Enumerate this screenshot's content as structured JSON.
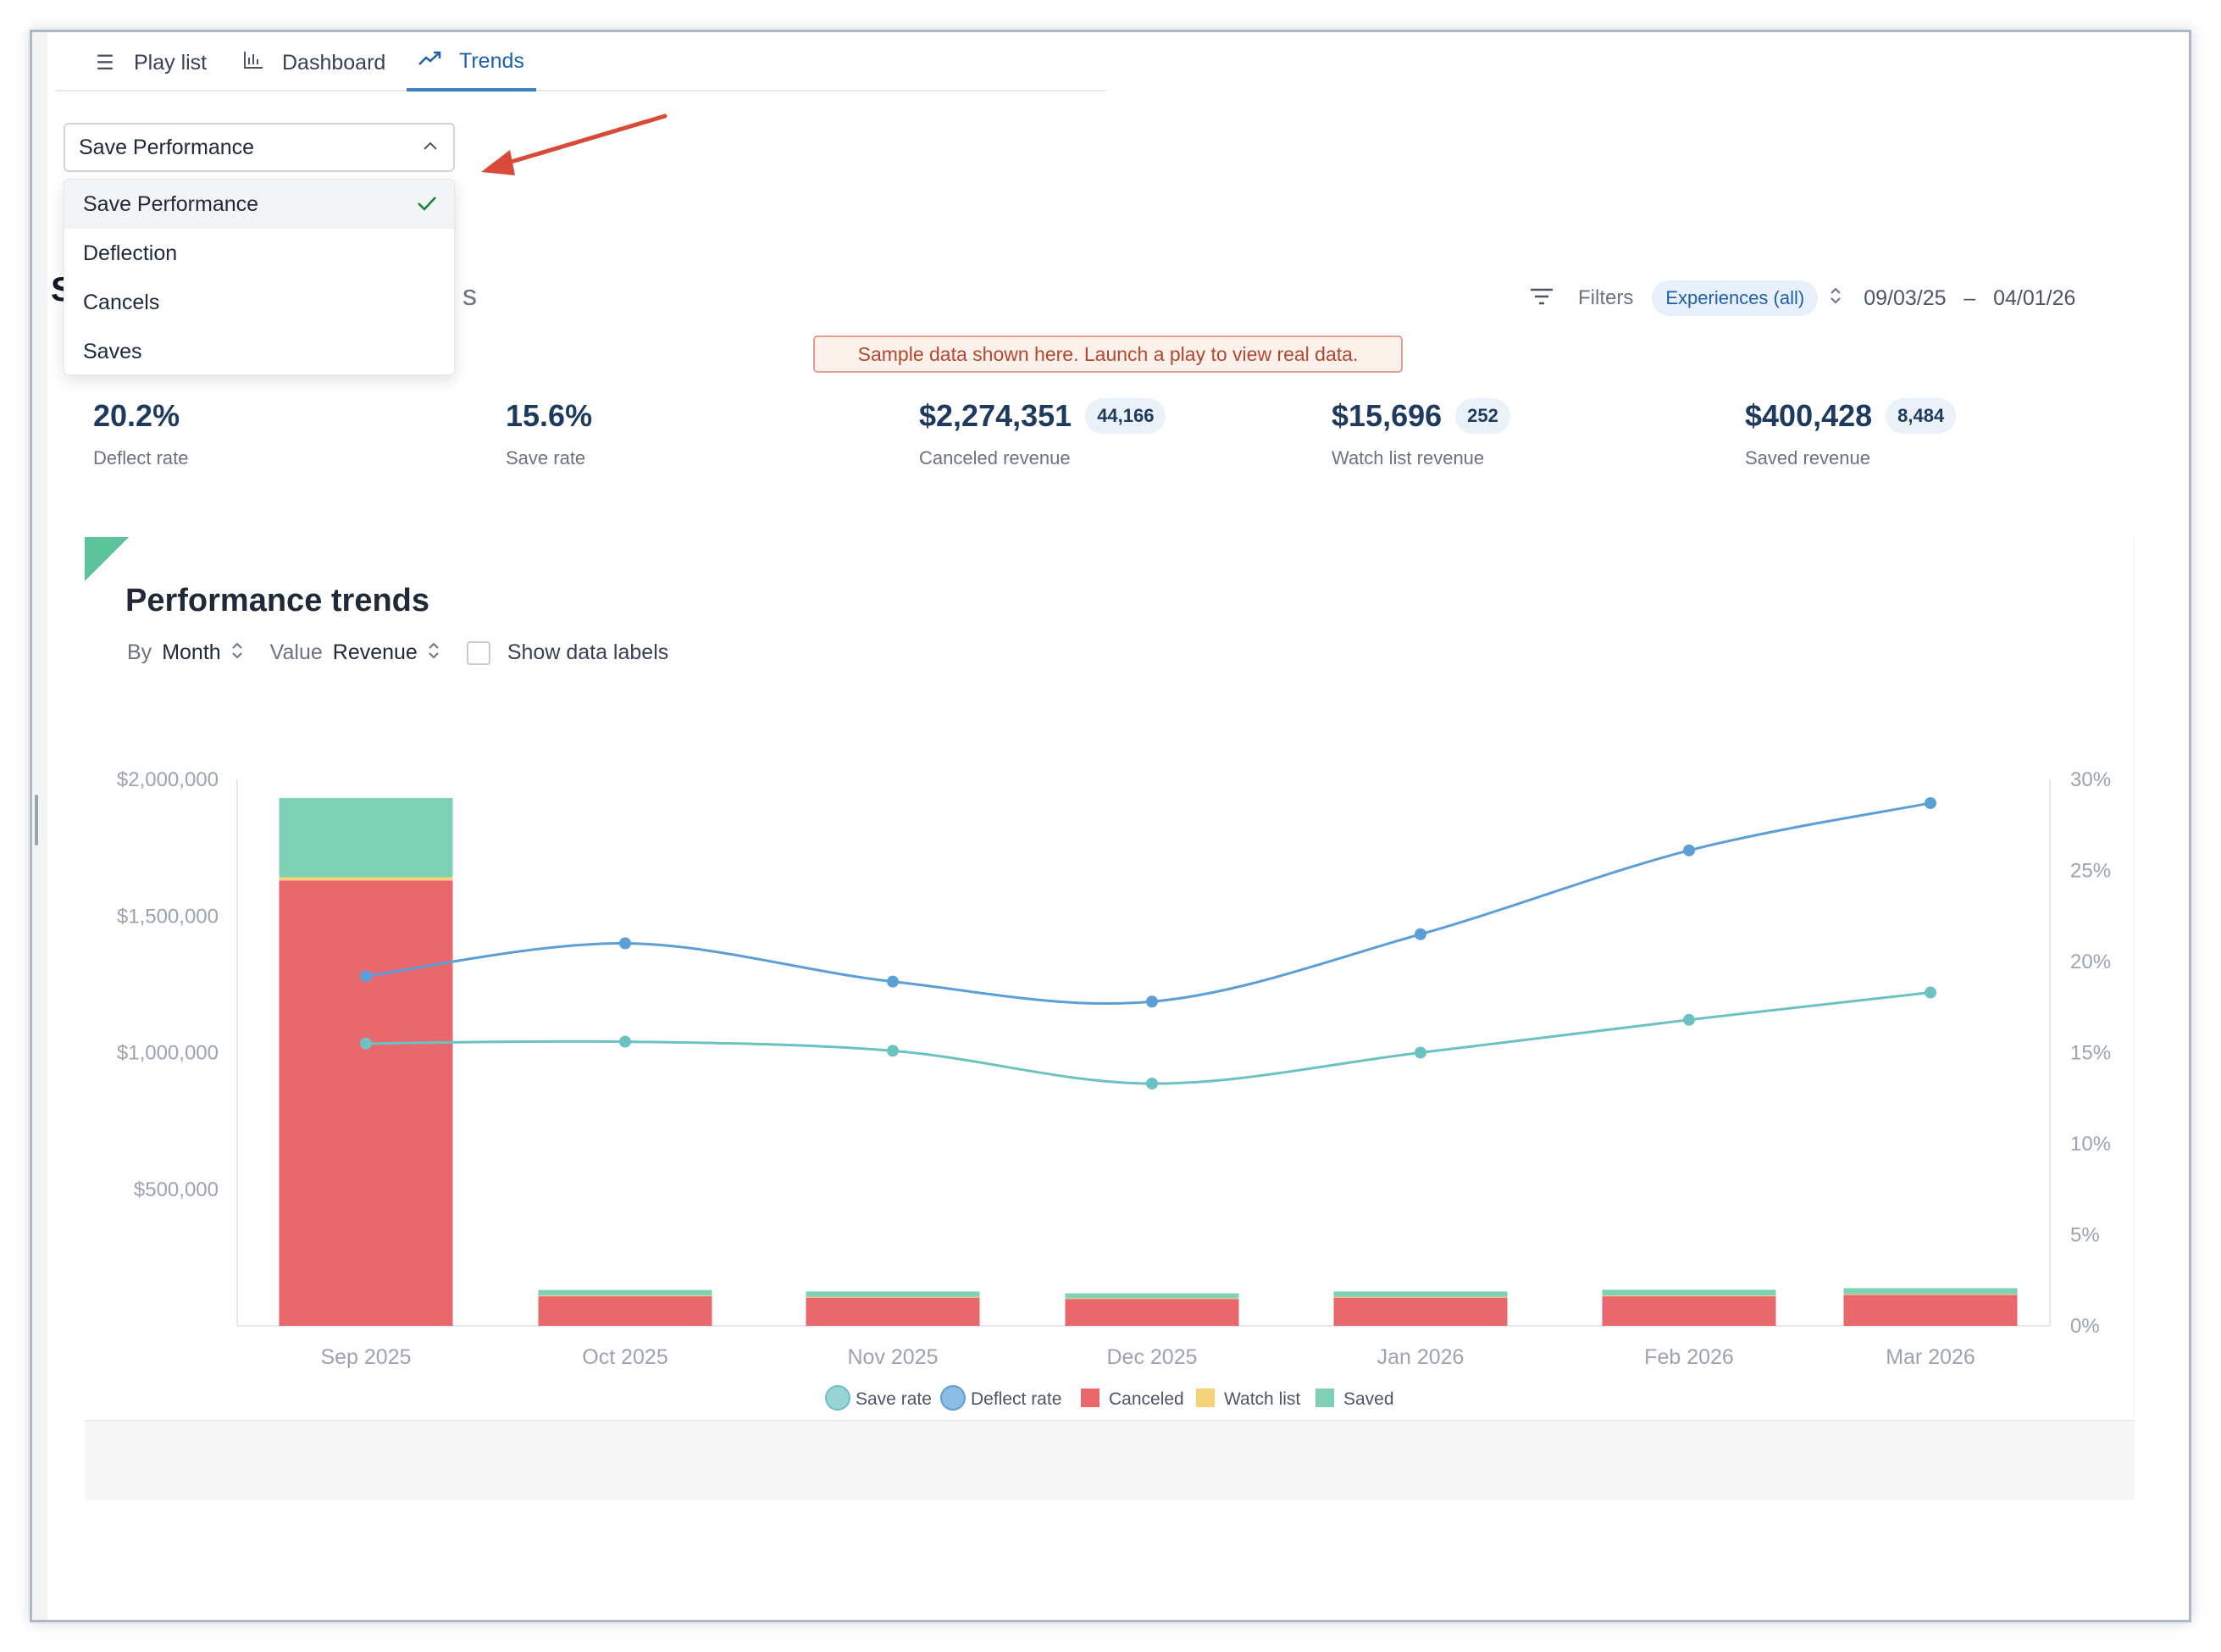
{
  "tabs": [
    {
      "label": "Play list",
      "icon": "list-icon"
    },
    {
      "label": "Dashboard",
      "icon": "bar-chart-icon"
    },
    {
      "label": "Trends",
      "icon": "trend-icon"
    }
  ],
  "select": {
    "value": "Save Performance",
    "options": [
      "Save Performance",
      "Deflection",
      "Cancels",
      "Saves"
    ]
  },
  "header_partial": {
    "left": "S",
    "right": "s"
  },
  "filters": {
    "label": "Filters",
    "pill": "Experiences (all)",
    "date_from": "09/03/25",
    "sep": "–",
    "date_to": "04/01/26"
  },
  "banner": "Sample data shown here. Launch a play to view real data.",
  "metrics": [
    {
      "value": "20.2%",
      "badge": "",
      "label": "Deflect rate"
    },
    {
      "value": "15.6%",
      "badge": "",
      "label": "Save rate"
    },
    {
      "value": "$2,274,351",
      "badge": "44,166",
      "label": "Canceled revenue"
    },
    {
      "value": "$15,696",
      "badge": "252",
      "label": "Watch list revenue"
    },
    {
      "value": "$400,428",
      "badge": "8,484",
      "label": "Saved revenue"
    }
  ],
  "chart": {
    "title": "Performance trends",
    "by_label": "By",
    "by_value": "Month",
    "value_label": "Value",
    "value_value": "Revenue",
    "show_labels": "Show data labels"
  },
  "chart_data": {
    "type": "bar",
    "categories": [
      "Sep 2025",
      "Oct 2025",
      "Nov 2025",
      "Dec 2025",
      "Jan 2026",
      "Feb 2026",
      "Mar 2026"
    ],
    "y_left_ticks": [
      "$2,000,000",
      "$1,500,000",
      "$1,000,000",
      "$500,000"
    ],
    "y_right_ticks": [
      "30%",
      "25%",
      "20%",
      "15%",
      "10%",
      "5%",
      "0%"
    ],
    "ylim_left": [
      0,
      2000000
    ],
    "ylim_right": [
      0,
      30
    ],
    "series": [
      {
        "name": "Canceled",
        "kind": "bar",
        "color": "#e8686e",
        "values": [
          1630000,
          110000,
          105000,
          100000,
          105000,
          110000,
          115000
        ]
      },
      {
        "name": "Watch list",
        "kind": "bar",
        "color": "#f5d17a",
        "values": [
          12000,
          1000,
          1000,
          1000,
          1000,
          1000,
          1000
        ]
      },
      {
        "name": "Saved",
        "kind": "bar",
        "color": "#7fd1b6",
        "values": [
          290000,
          20000,
          20000,
          18000,
          20000,
          21000,
          22000
        ]
      },
      {
        "name": "Save rate",
        "kind": "line",
        "color": "#6cc2c0",
        "values": [
          15.5,
          15.6,
          15.1,
          13.3,
          15.0,
          16.8,
          18.3
        ]
      },
      {
        "name": "Deflect rate",
        "kind": "line",
        "color": "#5b9fd6",
        "values": [
          19.2,
          21.0,
          18.9,
          17.8,
          21.5,
          26.1,
          28.7
        ]
      }
    ],
    "legend": [
      "Save rate",
      "Deflect rate",
      "Canceled",
      "Watch list",
      "Saved"
    ],
    "legend_position": "bottom-center",
    "grid": false
  }
}
